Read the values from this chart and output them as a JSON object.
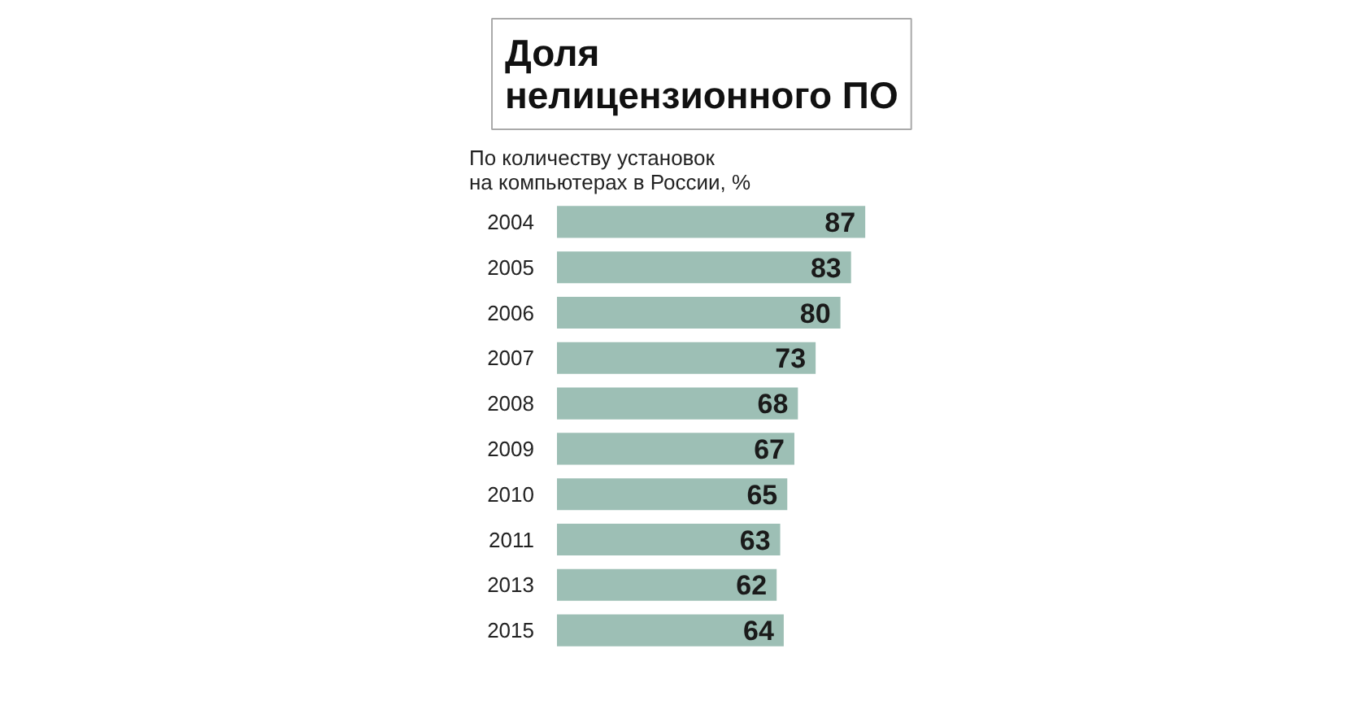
{
  "chart_data": {
    "type": "bar",
    "orientation": "horizontal",
    "title": "Доля нелицензионного ПО",
    "subtitle": "По количеству установок на компьютерах в России, %",
    "categories": [
      "2004",
      "2005",
      "2006",
      "2007",
      "2008",
      "2009",
      "2010",
      "2011",
      "2013",
      "2015"
    ],
    "values": [
      87,
      83,
      80,
      73,
      68,
      67,
      65,
      63,
      62,
      64
    ],
    "color": "#9dbfb5",
    "data_labels": true,
    "tick_labels": "y"
  }
}
